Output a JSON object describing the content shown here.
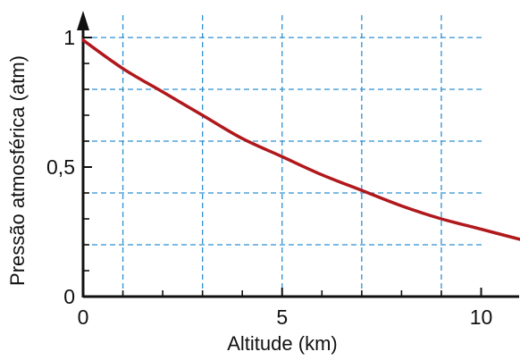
{
  "chart_data": {
    "type": "line",
    "title": "",
    "xlabel": "Altitude (km)",
    "ylabel": "Pressão atmosférica (atm)",
    "xlim": [
      0,
      11
    ],
    "ylim": [
      0,
      1.1
    ],
    "x_ticks": [
      {
        "value": 0,
        "label": "0"
      },
      {
        "value": 5,
        "label": "5"
      },
      {
        "value": 10,
        "label": "10"
      }
    ],
    "x_minor_ticks": [
      1,
      2,
      3,
      4,
      6,
      7,
      8,
      9,
      11
    ],
    "y_ticks": [
      {
        "value": 0,
        "label": "0"
      },
      {
        "value": 0.5,
        "label": "0,5"
      },
      {
        "value": 1,
        "label": "1"
      }
    ],
    "y_minor_ticks": [
      0.1,
      0.2,
      0.3,
      0.4,
      0.6,
      0.7,
      0.8,
      0.9
    ],
    "grid": {
      "on": true,
      "style": "dashed",
      "x_lines": [
        1,
        3,
        5,
        7,
        9
      ],
      "y_lines": [
        0.2,
        0.4,
        0.6,
        0.8,
        1.0
      ]
    },
    "series": [
      {
        "color": "#b0181c",
        "x": [
          0,
          1,
          2,
          3,
          4,
          5,
          6,
          7,
          8,
          9,
          10,
          11
        ],
        "values": [
          0.99,
          0.88,
          0.79,
          0.7,
          0.61,
          0.54,
          0.47,
          0.41,
          0.35,
          0.3,
          0.26,
          0.22
        ]
      }
    ],
    "colors": {
      "axis": "#111111",
      "grid": "#2f8fd0",
      "curve": "#b0181c"
    }
  }
}
